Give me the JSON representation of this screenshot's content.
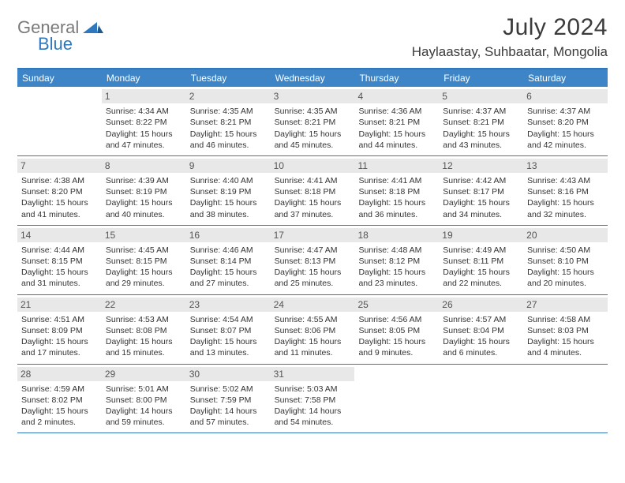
{
  "logo": {
    "general": "General",
    "blue": "Blue"
  },
  "title": "July 2024",
  "location": "Haylaastay, Suhbaatar, Mongolia",
  "colors": {
    "header_bar": "#3d85c6",
    "accent_line": "#2f78bd",
    "daynum_bg": "#e8e8e8",
    "text": "#333333",
    "logo_gray": "#7a7a7a",
    "logo_blue": "#2f78bd"
  },
  "dow": [
    "Sunday",
    "Monday",
    "Tuesday",
    "Wednesday",
    "Thursday",
    "Friday",
    "Saturday"
  ],
  "weeks": [
    [
      {
        "n": "",
        "sr": "",
        "ss": "",
        "dl": ""
      },
      {
        "n": "1",
        "sr": "Sunrise: 4:34 AM",
        "ss": "Sunset: 8:22 PM",
        "dl": "Daylight: 15 hours and 47 minutes."
      },
      {
        "n": "2",
        "sr": "Sunrise: 4:35 AM",
        "ss": "Sunset: 8:21 PM",
        "dl": "Daylight: 15 hours and 46 minutes."
      },
      {
        "n": "3",
        "sr": "Sunrise: 4:35 AM",
        "ss": "Sunset: 8:21 PM",
        "dl": "Daylight: 15 hours and 45 minutes."
      },
      {
        "n": "4",
        "sr": "Sunrise: 4:36 AM",
        "ss": "Sunset: 8:21 PM",
        "dl": "Daylight: 15 hours and 44 minutes."
      },
      {
        "n": "5",
        "sr": "Sunrise: 4:37 AM",
        "ss": "Sunset: 8:21 PM",
        "dl": "Daylight: 15 hours and 43 minutes."
      },
      {
        "n": "6",
        "sr": "Sunrise: 4:37 AM",
        "ss": "Sunset: 8:20 PM",
        "dl": "Daylight: 15 hours and 42 minutes."
      }
    ],
    [
      {
        "n": "7",
        "sr": "Sunrise: 4:38 AM",
        "ss": "Sunset: 8:20 PM",
        "dl": "Daylight: 15 hours and 41 minutes."
      },
      {
        "n": "8",
        "sr": "Sunrise: 4:39 AM",
        "ss": "Sunset: 8:19 PM",
        "dl": "Daylight: 15 hours and 40 minutes."
      },
      {
        "n": "9",
        "sr": "Sunrise: 4:40 AM",
        "ss": "Sunset: 8:19 PM",
        "dl": "Daylight: 15 hours and 38 minutes."
      },
      {
        "n": "10",
        "sr": "Sunrise: 4:41 AM",
        "ss": "Sunset: 8:18 PM",
        "dl": "Daylight: 15 hours and 37 minutes."
      },
      {
        "n": "11",
        "sr": "Sunrise: 4:41 AM",
        "ss": "Sunset: 8:18 PM",
        "dl": "Daylight: 15 hours and 36 minutes."
      },
      {
        "n": "12",
        "sr": "Sunrise: 4:42 AM",
        "ss": "Sunset: 8:17 PM",
        "dl": "Daylight: 15 hours and 34 minutes."
      },
      {
        "n": "13",
        "sr": "Sunrise: 4:43 AM",
        "ss": "Sunset: 8:16 PM",
        "dl": "Daylight: 15 hours and 32 minutes."
      }
    ],
    [
      {
        "n": "14",
        "sr": "Sunrise: 4:44 AM",
        "ss": "Sunset: 8:15 PM",
        "dl": "Daylight: 15 hours and 31 minutes."
      },
      {
        "n": "15",
        "sr": "Sunrise: 4:45 AM",
        "ss": "Sunset: 8:15 PM",
        "dl": "Daylight: 15 hours and 29 minutes."
      },
      {
        "n": "16",
        "sr": "Sunrise: 4:46 AM",
        "ss": "Sunset: 8:14 PM",
        "dl": "Daylight: 15 hours and 27 minutes."
      },
      {
        "n": "17",
        "sr": "Sunrise: 4:47 AM",
        "ss": "Sunset: 8:13 PM",
        "dl": "Daylight: 15 hours and 25 minutes."
      },
      {
        "n": "18",
        "sr": "Sunrise: 4:48 AM",
        "ss": "Sunset: 8:12 PM",
        "dl": "Daylight: 15 hours and 23 minutes."
      },
      {
        "n": "19",
        "sr": "Sunrise: 4:49 AM",
        "ss": "Sunset: 8:11 PM",
        "dl": "Daylight: 15 hours and 22 minutes."
      },
      {
        "n": "20",
        "sr": "Sunrise: 4:50 AM",
        "ss": "Sunset: 8:10 PM",
        "dl": "Daylight: 15 hours and 20 minutes."
      }
    ],
    [
      {
        "n": "21",
        "sr": "Sunrise: 4:51 AM",
        "ss": "Sunset: 8:09 PM",
        "dl": "Daylight: 15 hours and 17 minutes."
      },
      {
        "n": "22",
        "sr": "Sunrise: 4:53 AM",
        "ss": "Sunset: 8:08 PM",
        "dl": "Daylight: 15 hours and 15 minutes."
      },
      {
        "n": "23",
        "sr": "Sunrise: 4:54 AM",
        "ss": "Sunset: 8:07 PM",
        "dl": "Daylight: 15 hours and 13 minutes."
      },
      {
        "n": "24",
        "sr": "Sunrise: 4:55 AM",
        "ss": "Sunset: 8:06 PM",
        "dl": "Daylight: 15 hours and 11 minutes."
      },
      {
        "n": "25",
        "sr": "Sunrise: 4:56 AM",
        "ss": "Sunset: 8:05 PM",
        "dl": "Daylight: 15 hours and 9 minutes."
      },
      {
        "n": "26",
        "sr": "Sunrise: 4:57 AM",
        "ss": "Sunset: 8:04 PM",
        "dl": "Daylight: 15 hours and 6 minutes."
      },
      {
        "n": "27",
        "sr": "Sunrise: 4:58 AM",
        "ss": "Sunset: 8:03 PM",
        "dl": "Daylight: 15 hours and 4 minutes."
      }
    ],
    [
      {
        "n": "28",
        "sr": "Sunrise: 4:59 AM",
        "ss": "Sunset: 8:02 PM",
        "dl": "Daylight: 15 hours and 2 minutes."
      },
      {
        "n": "29",
        "sr": "Sunrise: 5:01 AM",
        "ss": "Sunset: 8:00 PM",
        "dl": "Daylight: 14 hours and 59 minutes."
      },
      {
        "n": "30",
        "sr": "Sunrise: 5:02 AM",
        "ss": "Sunset: 7:59 PM",
        "dl": "Daylight: 14 hours and 57 minutes."
      },
      {
        "n": "31",
        "sr": "Sunrise: 5:03 AM",
        "ss": "Sunset: 7:58 PM",
        "dl": "Daylight: 14 hours and 54 minutes."
      },
      {
        "n": "",
        "sr": "",
        "ss": "",
        "dl": ""
      },
      {
        "n": "",
        "sr": "",
        "ss": "",
        "dl": ""
      },
      {
        "n": "",
        "sr": "",
        "ss": "",
        "dl": ""
      }
    ]
  ]
}
